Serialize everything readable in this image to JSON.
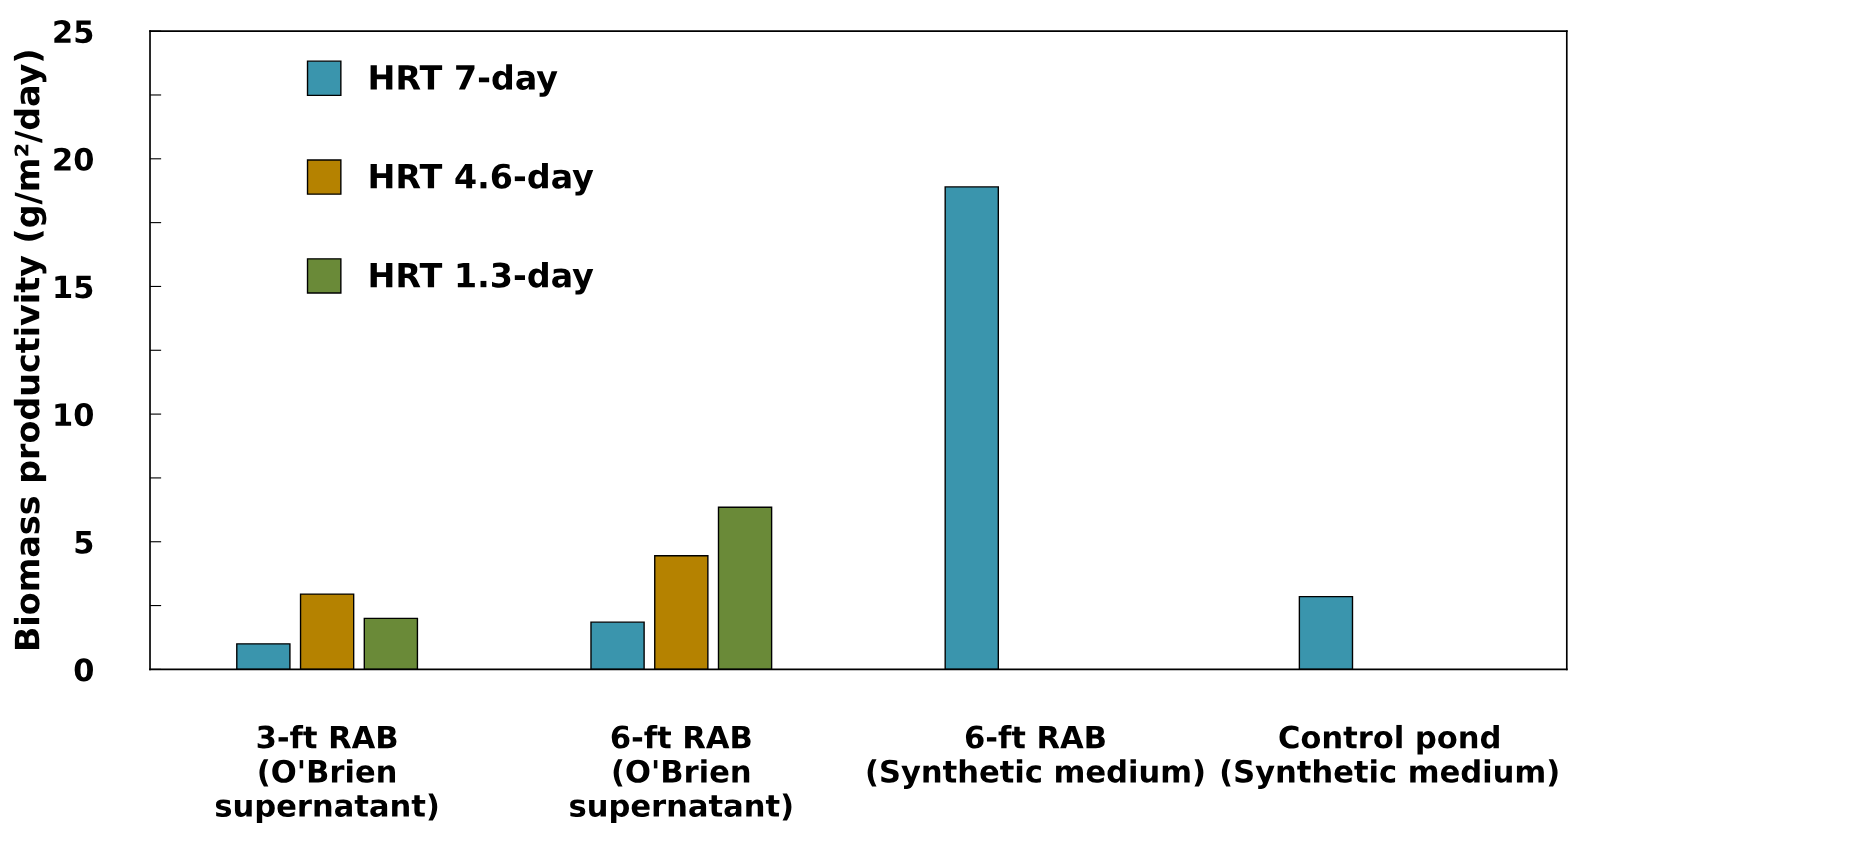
{
  "chart_data": {
    "type": "bar",
    "ylabel": "Biomass productivity (g/m²/day)",
    "categories": [
      "3-ft RAB\n(O'Brien\nsupernatant)",
      "6-ft RAB\n(O'Brien\nsupernatant)",
      "6-ft RAB\n(Synthetic medium)",
      "Control pond\n(Synthetic medium)"
    ],
    "series": [
      {
        "name": "HRT 7-day",
        "color": "#3a95ad",
        "values": [
          1.0,
          1.85,
          18.9,
          2.85
        ]
      },
      {
        "name": "HRT 4.6-day",
        "color": "#b58200",
        "values": [
          2.95,
          4.45,
          null,
          null
        ]
      },
      {
        "name": "HRT 1.3-day",
        "color": "#6a8a38",
        "values": [
          2.0,
          6.35,
          null,
          null
        ]
      }
    ],
    "ylim": [
      0,
      25
    ],
    "yticks": [
      0,
      {
        "value": 2.5,
        "label": null
      },
      5,
      {
        "value": 7.5,
        "label": null
      },
      10,
      {
        "value": 12.5,
        "label": null
      },
      15,
      {
        "value": 17.5,
        "label": null
      },
      20,
      {
        "value": 22.5,
        "label": null
      },
      25
    ],
    "grid": false,
    "legend": "top left"
  }
}
